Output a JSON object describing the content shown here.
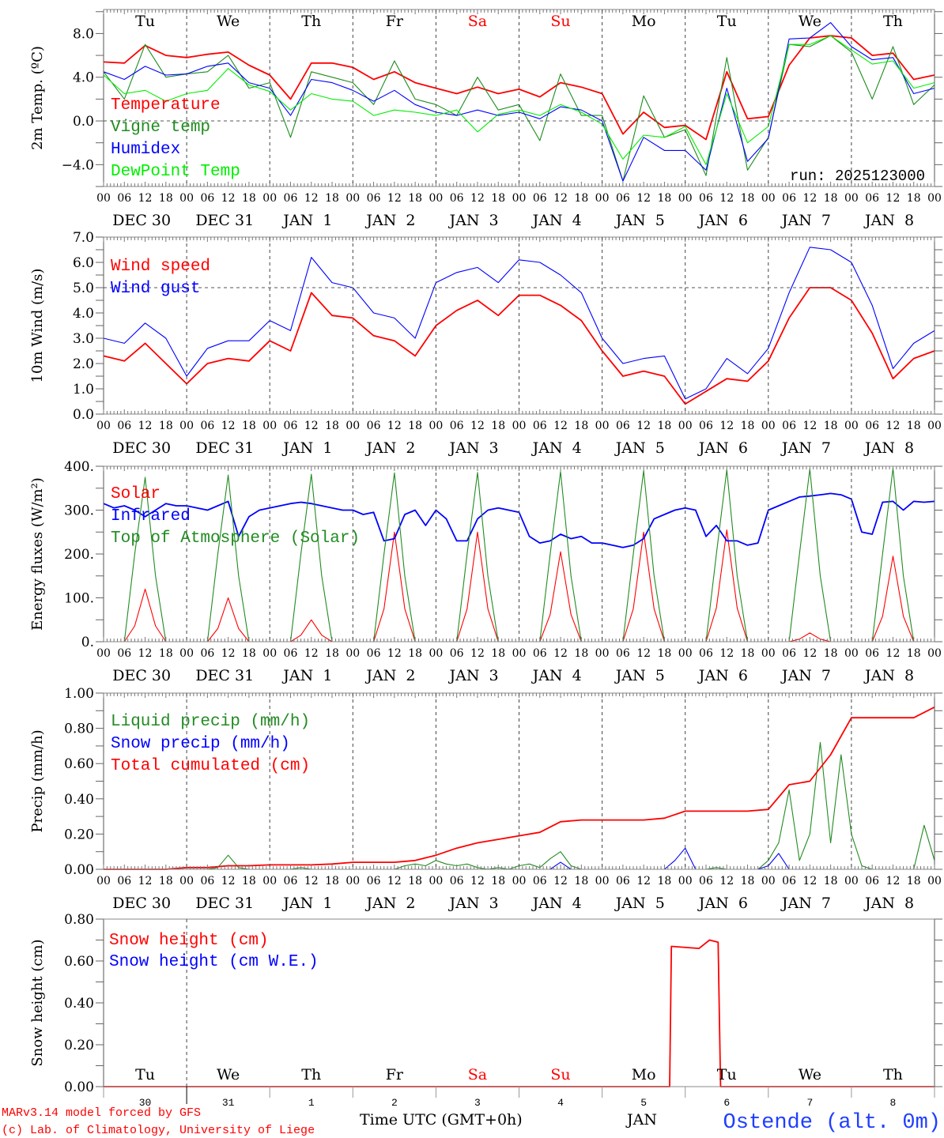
{
  "axes": {
    "hour_labels": [
      "00",
      "06",
      "12",
      "18"
    ],
    "date_labels": [
      "DEC 30",
      "DEC 31",
      "JAN  1",
      "JAN  2",
      "JAN  3",
      "JAN  4",
      "JAN  5",
      "JAN  6",
      "JAN  7",
      "JAN  8"
    ],
    "day_of_week": [
      "Tu",
      "We",
      "Th",
      "Fr",
      "Sa",
      "Su",
      "Mo",
      "Tu",
      "We",
      "Th"
    ],
    "weekend_color": "#ff0000",
    "bottom_day_numbers": [
      "30",
      "31",
      "1",
      "2",
      "3",
      "4",
      "5",
      "6",
      "7",
      "8"
    ],
    "bottom_month": "JAN",
    "time_title": "Time UTC (GMT+0h)"
  },
  "footer": {
    "model": "MARv3.14 model forced by GFS",
    "copyright": "(c) Lab. of Climatology, University of Liege",
    "station": "Ostende (alt. 0m)"
  },
  "chart_data": [
    {
      "type": "line",
      "ylabel": "2m Temp. (ºC)",
      "ylim": [
        -6.0,
        10.2
      ],
      "yticks": [
        8,
        4,
        0,
        -4
      ],
      "ytick_labels": [
        "8.0",
        "4.0",
        "0.0",
        "−4.0"
      ],
      "minor_step": 2,
      "ref_line": 0,
      "annotation": "run: 2025123000",
      "x_unit": "hours since DEC 30 00 UTC",
      "xlim": [
        0,
        240
      ],
      "series": [
        {
          "name": "Temperature",
          "color": "#ff0000",
          "step_hours": 6,
          "values": [
            5.4,
            5.3,
            6.9,
            6.0,
            5.8,
            6.1,
            6.3,
            5.1,
            4.2,
            2.0,
            5.3,
            5.3,
            4.9,
            3.8,
            4.5,
            3.5,
            3.0,
            2.5,
            3.1,
            2.5,
            2.9,
            2.2,
            3.5,
            3.1,
            2.5,
            -1.2,
            0.8,
            -0.6,
            -0.4,
            -1.7,
            4.5,
            0.2,
            0.4,
            5.1,
            7.6,
            7.8,
            7.6,
            6.0,
            6.2,
            3.8,
            4.2
          ]
        },
        {
          "name": "Vigne temp",
          "color": "#1e8c1e",
          "step_hours": 6,
          "values": [
            4.5,
            2.0,
            7.0,
            4.0,
            4.3,
            4.5,
            6.0,
            3.0,
            3.5,
            -1.5,
            4.5,
            4.0,
            3.5,
            1.5,
            5.5,
            2.0,
            1.5,
            0.5,
            4.0,
            1.0,
            1.5,
            -1.8,
            4.3,
            0.5,
            0.5,
            -5.5,
            2.3,
            -1.5,
            -0.8,
            -5.0,
            5.8,
            -4.5,
            -1.5,
            7.0,
            6.8,
            7.8,
            6.3,
            2.0,
            6.8,
            1.5,
            3.3
          ]
        },
        {
          "name": "Humidex",
          "color": "#0000ff",
          "step_hours": 6,
          "values": [
            4.5,
            3.8,
            5.0,
            4.2,
            4.3,
            5.0,
            5.3,
            3.5,
            3.0,
            0.5,
            3.8,
            3.5,
            2.8,
            1.8,
            2.8,
            1.5,
            0.8,
            0.5,
            1.0,
            0.5,
            0.8,
            0.2,
            1.3,
            1.0,
            0.0,
            -5.5,
            -1.5,
            -2.7,
            -2.7,
            -4.5,
            3.0,
            -3.7,
            -1.6,
            7.5,
            7.6,
            9.0,
            6.8,
            5.6,
            5.8,
            2.5,
            3.0
          ]
        },
        {
          "name": "DewPoint Temp",
          "color": "#00ee00",
          "step_hours": 6,
          "values": [
            4.2,
            2.5,
            2.8,
            1.8,
            2.5,
            2.8,
            4.8,
            3.3,
            2.7,
            1.0,
            2.5,
            2.0,
            1.8,
            0.5,
            1.0,
            0.8,
            0.5,
            1.0,
            -1.0,
            0.6,
            1.0,
            0.5,
            1.5,
            0.8,
            -0.3,
            -3.5,
            -1.3,
            -1.5,
            -0.5,
            -4.0,
            2.5,
            -2.0,
            -0.5,
            7.0,
            7.0,
            7.8,
            6.5,
            5.2,
            5.5,
            3.0,
            3.5
          ]
        }
      ]
    },
    {
      "type": "line",
      "ylabel": "10m Wind (m/s)",
      "ylim": [
        0,
        7
      ],
      "yticks": [
        7,
        6,
        5,
        4,
        3,
        2,
        1,
        0
      ],
      "ytick_labels": [
        "7.0",
        "6.0",
        "5.0",
        "4.0",
        "3.0",
        "2.0",
        "1.0",
        "0.0"
      ],
      "minor_step": 0.5,
      "ref_line": 5,
      "xlim": [
        0,
        240
      ],
      "series": [
        {
          "name": "Wind speed",
          "color": "#ff0000",
          "step_hours": 6,
          "values": [
            2.3,
            2.1,
            2.8,
            2.0,
            1.2,
            2.0,
            2.2,
            2.1,
            2.9,
            2.5,
            4.8,
            3.9,
            3.8,
            3.1,
            2.9,
            2.3,
            3.5,
            4.1,
            4.5,
            3.9,
            4.7,
            4.7,
            4.3,
            3.7,
            2.5,
            1.5,
            1.7,
            1.5,
            0.4,
            0.9,
            1.4,
            1.3,
            2.1,
            3.8,
            5.0,
            5.0,
            4.5,
            3.2,
            1.4,
            2.2,
            2.5
          ]
        },
        {
          "name": "Wind gust",
          "color": "#0000ff",
          "step_hours": 6,
          "values": [
            3.0,
            2.8,
            3.6,
            3.0,
            1.5,
            2.6,
            2.9,
            2.9,
            3.7,
            3.3,
            6.2,
            5.2,
            5.0,
            4.0,
            3.8,
            3.0,
            5.2,
            5.6,
            5.8,
            5.2,
            6.1,
            6.0,
            5.5,
            4.8,
            3.0,
            2.0,
            2.2,
            2.3,
            0.6,
            1.0,
            2.2,
            1.6,
            2.6,
            4.8,
            6.6,
            6.5,
            6.0,
            4.3,
            1.8,
            2.8,
            3.3
          ]
        }
      ]
    },
    {
      "type": "line",
      "ylabel": "Energy fluxes (W/m²)",
      "ylim": [
        0,
        400
      ],
      "yticks": [
        400,
        300,
        200,
        100,
        0
      ],
      "ytick_labels": [
        "400.",
        "300.",
        "200.",
        "100.",
        "0."
      ],
      "minor_step": 50,
      "xlim": [
        0,
        240
      ],
      "series": [
        {
          "name": "Solar",
          "color": "#ff0000",
          "step_hours": 3,
          "values": [
            0,
            0,
            0,
            36,
            120,
            36,
            0,
            0,
            0,
            0,
            0,
            30,
            100,
            30,
            0,
            0,
            0,
            0,
            0,
            15,
            50,
            15,
            0,
            0,
            0,
            0,
            0,
            75,
            250,
            75,
            0,
            0,
            0,
            0,
            0,
            75,
            250,
            75,
            0,
            0,
            0,
            0,
            0,
            62,
            205,
            62,
            0,
            0,
            0,
            0,
            0,
            75,
            250,
            75,
            0,
            0,
            0,
            0,
            0,
            77,
            255,
            77,
            0,
            0,
            0,
            0,
            0,
            6,
            20,
            6,
            0,
            0,
            0,
            0,
            0,
            58,
            195,
            58,
            0,
            0,
            0
          ]
        },
        {
          "name": "Infrared",
          "color": "#0000ff",
          "step_hours": 3,
          "values": [
            315,
            305,
            310,
            300,
            285,
            300,
            315,
            310,
            310,
            305,
            300,
            310,
            320,
            240,
            285,
            300,
            305,
            310,
            315,
            318,
            315,
            310,
            305,
            300,
            300,
            290,
            295,
            230,
            235,
            290,
            300,
            265,
            300,
            280,
            230,
            230,
            280,
            300,
            305,
            300,
            295,
            240,
            225,
            230,
            245,
            235,
            240,
            225,
            225,
            220,
            215,
            220,
            235,
            280,
            290,
            300,
            305,
            300,
            240,
            265,
            230,
            230,
            220,
            225,
            300,
            310,
            320,
            330,
            332,
            335,
            338,
            335,
            325,
            250,
            245,
            318,
            320,
            300,
            320,
            318,
            320
          ]
        },
        {
          "name": "Top of Atmosphere (Solar)",
          "color": "#228b22",
          "step_hours": 3,
          "values": [
            0,
            0,
            0,
            200,
            375,
            150,
            0,
            0,
            0,
            0,
            0,
            200,
            380,
            150,
            0,
            0,
            0,
            0,
            0,
            200,
            382,
            150,
            0,
            0,
            0,
            0,
            0,
            200,
            385,
            150,
            0,
            0,
            0,
            0,
            0,
            200,
            386,
            150,
            0,
            0,
            0,
            0,
            0,
            200,
            388,
            150,
            0,
            0,
            0,
            0,
            0,
            200,
            390,
            150,
            0,
            0,
            0,
            0,
            0,
            200,
            392,
            150,
            0,
            0,
            0,
            0,
            0,
            200,
            394,
            150,
            0,
            0,
            0,
            0,
            0,
            200,
            396,
            150,
            0,
            0,
            0
          ]
        }
      ]
    },
    {
      "type": "line",
      "ylabel": "Precip (mm/h)",
      "ylim": [
        0,
        1.0
      ],
      "yticks": [
        1.0,
        0.8,
        0.6,
        0.4,
        0.2,
        0
      ],
      "ytick_labels": [
        "1.00",
        "0.80",
        "0.60",
        "0.40",
        "0.20",
        "0.00"
      ],
      "minor_step": 0.1,
      "xlim": [
        0,
        240
      ],
      "series": [
        {
          "name": "Liquid precip (mm/h)",
          "color": "#228b22",
          "step_hours": 3,
          "values": [
            0,
            0,
            0,
            0,
            0,
            0,
            0,
            0,
            0,
            0,
            0,
            0.01,
            0.08,
            0.01,
            0,
            0,
            0,
            0,
            0,
            0.01,
            0,
            0,
            0,
            0,
            0,
            0,
            0,
            0,
            0,
            0.02,
            0.03,
            0.02,
            0.05,
            0.03,
            0.02,
            0.03,
            0.01,
            0,
            0.01,
            0,
            0.02,
            0.03,
            0.01,
            0.06,
            0.1,
            0.02,
            0,
            0,
            0,
            0,
            0,
            0,
            0,
            0,
            0,
            0,
            0,
            0,
            0,
            0.01,
            0,
            0,
            0,
            0,
            0.05,
            0.15,
            0.45,
            0.05,
            0.2,
            0.72,
            0.15,
            0.65,
            0.2,
            0.02,
            0,
            0,
            0,
            0,
            0,
            0.25,
            0.05
          ]
        },
        {
          "name": "Snow precip (mm/h)",
          "color": "#0000ff",
          "step_hours": 3,
          "values": [
            0,
            0,
            0,
            0,
            0,
            0,
            0,
            0,
            0,
            0,
            0,
            0,
            0,
            0,
            0,
            0,
            0,
            0,
            0,
            0,
            0,
            0,
            0,
            0,
            0,
            0,
            0,
            0,
            0,
            0,
            0,
            0,
            0,
            0,
            0,
            0,
            0,
            0,
            0,
            0,
            0,
            0,
            0,
            0,
            0.04,
            0,
            0,
            0,
            0,
            0,
            0,
            0,
            0,
            0,
            0,
            0.05,
            0.12,
            0,
            0,
            0,
            0,
            0,
            0,
            0,
            0.02,
            0.09,
            0,
            0,
            0,
            0,
            0,
            0,
            0,
            0,
            0,
            0,
            0,
            0,
            0,
            0,
            0
          ]
        },
        {
          "name": "Total cumulated (cm)",
          "color": "#ff0000",
          "step_hours": 6,
          "values": [
            0,
            0,
            0,
            0,
            0.01,
            0.01,
            0.02,
            0.02,
            0.025,
            0.025,
            0.025,
            0.03,
            0.04,
            0.04,
            0.04,
            0.05,
            0.08,
            0.12,
            0.15,
            0.17,
            0.19,
            0.21,
            0.27,
            0.28,
            0.28,
            0.28,
            0.28,
            0.29,
            0.33,
            0.33,
            0.33,
            0.33,
            0.34,
            0.48,
            0.5,
            0.65,
            0.86,
            0.86,
            0.86,
            0.86,
            0.92
          ]
        }
      ]
    },
    {
      "type": "line",
      "ylabel": "Snow height (cm)",
      "ylim": [
        0,
        0.8
      ],
      "yticks": [
        0.8,
        0.6,
        0.4,
        0.2,
        0
      ],
      "ytick_labels": [
        "0.80",
        "0.60",
        "0.40",
        "0.20",
        "0.00"
      ],
      "minor_step": 0.1,
      "xlim": [
        0,
        240
      ],
      "series": [
        {
          "name": "Snow height (cm)",
          "color": "#ff0000",
          "points": [
            [
              0,
              0
            ],
            [
              163.5,
              0
            ],
            [
              164,
              0.67
            ],
            [
              172,
              0.66
            ],
            [
              175,
              0.7
            ],
            [
              177.5,
              0.69
            ],
            [
              178.2,
              0
            ],
            [
              240,
              0
            ]
          ]
        },
        {
          "name": "Snow height (cm W.E.)",
          "color": "#0000ff",
          "points": [
            [
              0,
              0
            ],
            [
              240,
              0
            ]
          ]
        }
      ]
    }
  ]
}
